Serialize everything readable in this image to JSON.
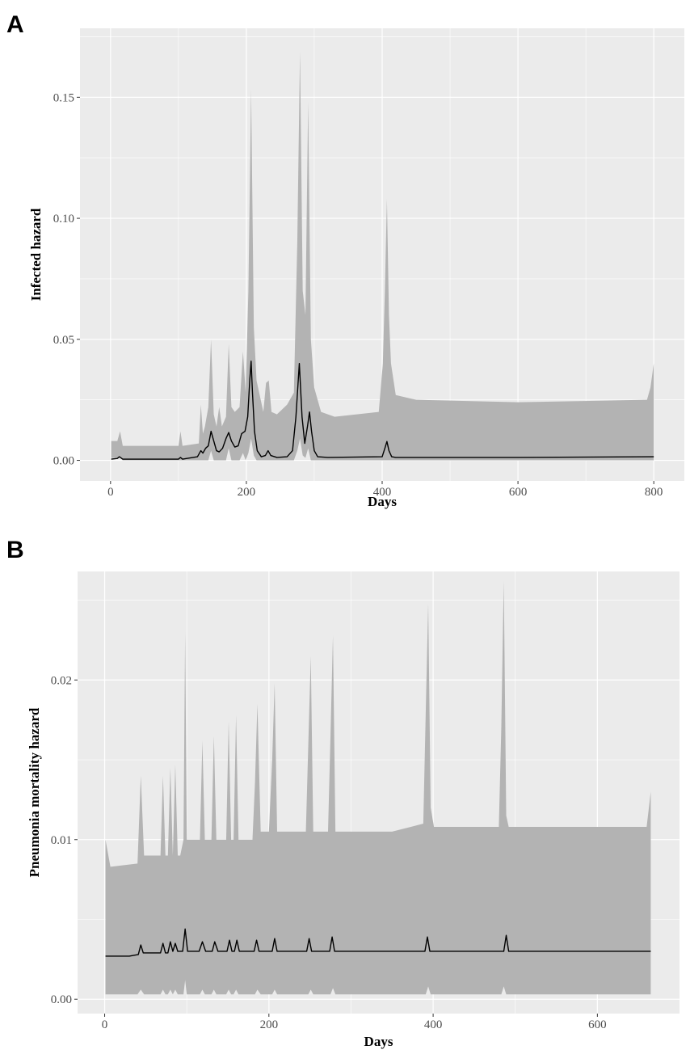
{
  "chart_data": [
    {
      "panel": "A",
      "type": "area",
      "xlabel": "Days",
      "ylabel": "Infected hazard",
      "xlim": [
        -45,
        845
      ],
      "ylim": [
        -0.0085,
        0.1785
      ],
      "xticks": [
        0,
        200,
        400,
        600,
        800
      ],
      "xtick_labels": [
        "0",
        "200",
        "400",
        "600",
        "800"
      ],
      "yticks": [
        0.0,
        0.05,
        0.1,
        0.15
      ],
      "ytick_labels": [
        "0.00",
        "0.05",
        "0.10",
        "0.15"
      ],
      "grid": true,
      "background": "#ebebeb",
      "band_color": "#b3b3b3",
      "line_color": "#000000",
      "band": {
        "x": [
          1,
          10,
          14,
          18,
          100,
          103,
          106,
          130,
          133,
          136,
          139,
          144,
          148,
          152,
          156,
          160,
          164,
          170,
          174,
          178,
          183,
          190,
          195,
          199,
          203,
          207,
          211,
          215,
          225,
          229,
          233,
          237,
          245,
          260,
          270,
          275,
          279,
          283,
          287,
          291,
          295,
          300,
          310,
          330,
          395,
          401,
          404,
          407,
          410,
          413,
          420,
          450,
          600,
          790,
          795,
          800
        ],
        "upper": [
          0.008,
          0.008,
          0.012,
          0.006,
          0.006,
          0.012,
          0.006,
          0.007,
          0.023,
          0.011,
          0.014,
          0.022,
          0.05,
          0.019,
          0.014,
          0.022,
          0.014,
          0.018,
          0.048,
          0.022,
          0.02,
          0.022,
          0.045,
          0.028,
          0.07,
          0.153,
          0.055,
          0.033,
          0.02,
          0.032,
          0.033,
          0.02,
          0.019,
          0.023,
          0.028,
          0.09,
          0.169,
          0.07,
          0.06,
          0.148,
          0.05,
          0.03,
          0.02,
          0.018,
          0.02,
          0.04,
          0.07,
          0.108,
          0.06,
          0.04,
          0.027,
          0.025,
          0.024,
          0.025,
          0.03,
          0.04
        ],
        "lower": [
          0.001,
          0.001,
          0.001,
          0.0,
          0.0,
          0.0,
          0.0,
          0.0,
          0.0,
          0.0,
          0.0,
          0.0,
          0.004,
          0.0,
          0.0,
          0.0,
          0.0,
          0.0,
          0.005,
          0.0,
          0.0,
          0.0,
          0.003,
          0.0,
          0.003,
          0.009,
          0.002,
          0.0,
          0.0,
          0.0,
          0.0,
          0.0,
          0.0,
          0.0,
          0.0,
          0.004,
          0.009,
          0.002,
          0.001,
          0.005,
          0.0,
          0.0,
          0.0,
          0.0,
          0.0,
          0.0,
          0.0,
          0.0,
          0.0,
          0.0,
          0.0,
          0.0,
          0.0,
          0.0,
          0.0,
          0.0
        ]
      },
      "line": {
        "x": [
          1,
          10,
          13,
          18,
          100,
          103,
          106,
          128,
          133,
          136,
          140,
          144,
          148,
          152,
          156,
          160,
          165,
          170,
          174,
          178,
          183,
          188,
          193,
          198,
          202,
          205,
          207,
          209,
          212,
          216,
          222,
          228,
          232,
          236,
          245,
          260,
          268,
          273,
          278,
          282,
          286,
          290,
          293,
          296,
          300,
          305,
          320,
          400,
          404,
          407,
          410,
          414,
          420,
          450,
          600,
          800
        ],
        "y": [
          0.0005,
          0.0008,
          0.0015,
          0.0005,
          0.0005,
          0.0012,
          0.0005,
          0.0015,
          0.004,
          0.003,
          0.005,
          0.006,
          0.012,
          0.008,
          0.004,
          0.0035,
          0.005,
          0.009,
          0.0115,
          0.008,
          0.0055,
          0.006,
          0.011,
          0.012,
          0.018,
          0.033,
          0.041,
          0.028,
          0.012,
          0.004,
          0.0015,
          0.002,
          0.004,
          0.002,
          0.0012,
          0.0015,
          0.004,
          0.018,
          0.04,
          0.018,
          0.007,
          0.014,
          0.02,
          0.012,
          0.004,
          0.0015,
          0.0012,
          0.0015,
          0.005,
          0.0078,
          0.004,
          0.0015,
          0.0012,
          0.0012,
          0.0012,
          0.0015
        ]
      }
    },
    {
      "panel": "B",
      "type": "area",
      "xlabel": "Days",
      "ylabel": "Pneumonia mortality hazard",
      "xlim": [
        -33,
        700
      ],
      "ylim": [
        -0.0009,
        0.0268
      ],
      "xticks": [
        0,
        200,
        400,
        600
      ],
      "xtick_labels": [
        "0",
        "200",
        "400",
        "600"
      ],
      "yticks": [
        0.0,
        0.01,
        0.02
      ],
      "ytick_labels": [
        "0.00",
        "0.01",
        "0.02"
      ],
      "grid": true,
      "background": "#ebebeb",
      "band_color": "#b3b3b3",
      "line_color": "#000000",
      "band": {
        "x": [
          1,
          7,
          40,
          44,
          48,
          68,
          71,
          74,
          77,
          80,
          83,
          86,
          89,
          92,
          96,
          98,
          100,
          104,
          112,
          116,
          119,
          122,
          130,
          133,
          136,
          140,
          148,
          151,
          154,
          157,
          160,
          163,
          170,
          180,
          183,
          186,
          190,
          200,
          204,
          207,
          210,
          215,
          245,
          248,
          251,
          254,
          258,
          272,
          275,
          278,
          281,
          285,
          350,
          388,
          391,
          394,
          397,
          401,
          480,
          483,
          486,
          489,
          492,
          496,
          600,
          660,
          665
        ],
        "upper": [
          0.01,
          0.0083,
          0.0085,
          0.014,
          0.009,
          0.009,
          0.014,
          0.009,
          0.009,
          0.0145,
          0.009,
          0.0147,
          0.009,
          0.009,
          0.01,
          0.023,
          0.01,
          0.01,
          0.01,
          0.01,
          0.0162,
          0.01,
          0.01,
          0.0165,
          0.01,
          0.01,
          0.01,
          0.0174,
          0.01,
          0.01,
          0.0178,
          0.01,
          0.01,
          0.01,
          0.0135,
          0.0185,
          0.0105,
          0.0105,
          0.015,
          0.0198,
          0.0105,
          0.0105,
          0.0105,
          0.016,
          0.0215,
          0.0105,
          0.0105,
          0.0105,
          0.0165,
          0.0228,
          0.0105,
          0.0105,
          0.0105,
          0.011,
          0.018,
          0.0248,
          0.012,
          0.0108,
          0.0108,
          0.017,
          0.0262,
          0.0115,
          0.0108,
          0.0108,
          0.0108,
          0.0108,
          0.013
        ],
        "lower": [
          0.0003,
          0.0003,
          0.0003,
          0.0006,
          0.0003,
          0.0003,
          0.0006,
          0.0003,
          0.0003,
          0.0006,
          0.0003,
          0.0006,
          0.0003,
          0.0003,
          0.0003,
          0.0012,
          0.0003,
          0.0003,
          0.0003,
          0.0003,
          0.0006,
          0.0003,
          0.0003,
          0.0006,
          0.0003,
          0.0003,
          0.0003,
          0.0006,
          0.0003,
          0.0003,
          0.0006,
          0.0003,
          0.0003,
          0.0003,
          0.0003,
          0.0006,
          0.0003,
          0.0003,
          0.0003,
          0.0006,
          0.0003,
          0.0003,
          0.0003,
          0.0003,
          0.0006,
          0.0003,
          0.0003,
          0.0003,
          0.0003,
          0.0007,
          0.0003,
          0.0003,
          0.0003,
          0.0003,
          0.0003,
          0.0008,
          0.0003,
          0.0003,
          0.0003,
          0.0003,
          0.0008,
          0.0003,
          0.0003,
          0.0003,
          0.0003,
          0.0003,
          0.0003
        ]
      },
      "line": {
        "x": [
          1,
          30,
          41,
          44,
          47,
          68,
          71,
          74,
          77,
          80,
          83,
          86,
          89,
          95,
          98,
          101,
          115,
          119,
          123,
          131,
          134,
          138,
          149,
          152,
          155,
          158,
          161,
          164,
          182,
          185,
          188,
          204,
          207,
          210,
          246,
          249,
          252,
          274,
          277,
          280,
          300,
          390,
          393,
          396,
          486,
          489,
          492,
          550,
          665
        ],
        "y": [
          0.0027,
          0.0027,
          0.0028,
          0.0034,
          0.0029,
          0.0029,
          0.0035,
          0.0029,
          0.0029,
          0.0036,
          0.003,
          0.0035,
          0.003,
          0.003,
          0.0044,
          0.003,
          0.003,
          0.0036,
          0.003,
          0.003,
          0.0036,
          0.003,
          0.003,
          0.0037,
          0.003,
          0.003,
          0.0037,
          0.003,
          0.003,
          0.0037,
          0.003,
          0.003,
          0.0038,
          0.003,
          0.003,
          0.0038,
          0.003,
          0.003,
          0.0039,
          0.003,
          0.003,
          0.003,
          0.0039,
          0.003,
          0.003,
          0.004,
          0.003,
          0.003,
          0.003
        ]
      }
    }
  ]
}
